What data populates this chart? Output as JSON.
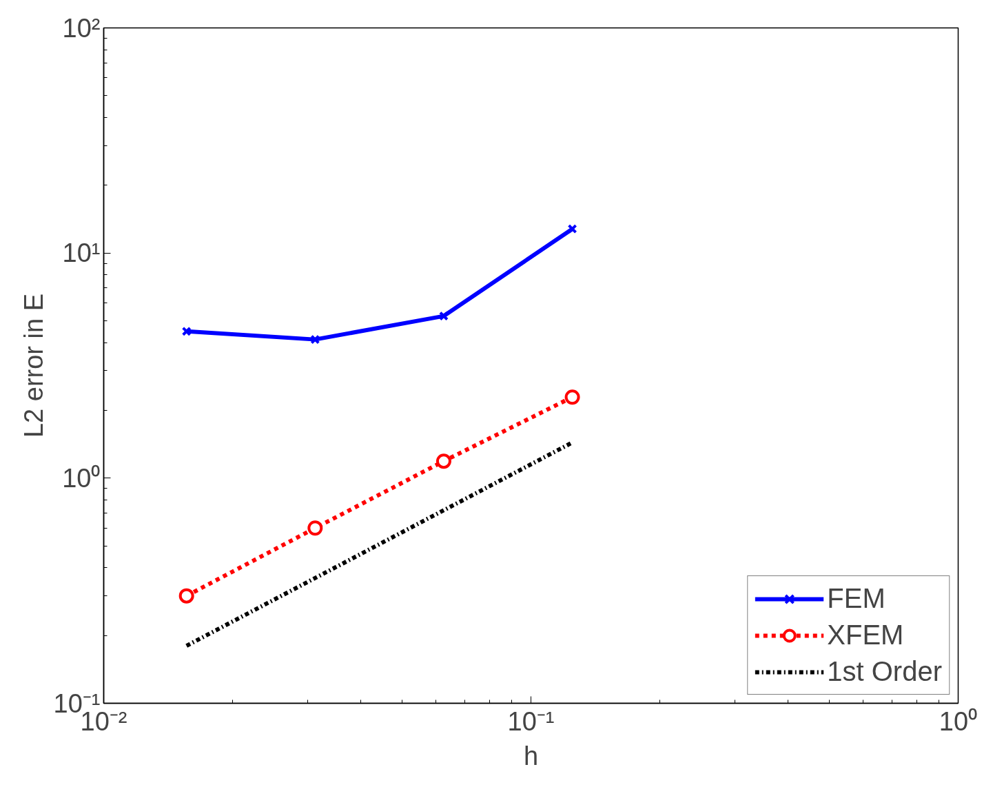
{
  "chart_data": {
    "type": "line",
    "xlabel": "h",
    "ylabel": "L2 error in E",
    "log": "xy",
    "xlim": [
      0.01,
      1
    ],
    "ylim": [
      0.1,
      100
    ],
    "xticks": [
      {
        "value": 0.01,
        "label": "10⁻²"
      },
      {
        "value": 0.1,
        "label": "10⁻¹"
      },
      {
        "value": 1,
        "label": "10⁰"
      }
    ],
    "yticks": [
      {
        "value": 0.1,
        "label": "10⁻¹"
      },
      {
        "value": 1,
        "label": "10⁰"
      },
      {
        "value": 10,
        "label": "10¹"
      },
      {
        "value": 100,
        "label": "10²"
      }
    ],
    "x": [
      0.015625,
      0.03125,
      0.0625,
      0.125
    ],
    "series": [
      {
        "name": "FEM",
        "color": "#0000ff",
        "values": [
          4.49,
          4.13,
          5.25,
          12.8
        ],
        "marker": "cross",
        "line_style": "solid"
      },
      {
        "name": "XFEM",
        "color": "#ff0000",
        "values": [
          0.3,
          0.6,
          1.19,
          2.29
        ],
        "marker": "circle",
        "line_style": "dashed"
      },
      {
        "name": "1st Order",
        "color": "#000000",
        "x": [
          0.015625,
          0.125
        ],
        "values": [
          0.18,
          1.44
        ],
        "marker": "none",
        "line_style": "dashdot"
      }
    ],
    "grid": false,
    "legend": "bottom right"
  }
}
